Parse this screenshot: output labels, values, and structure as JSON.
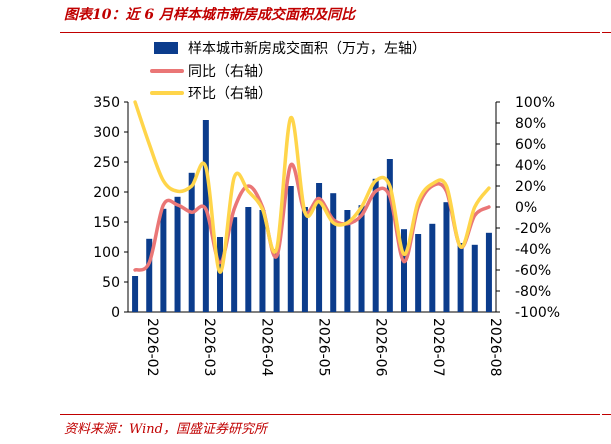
{
  "caption": "图表10：近 6 月样本城市新房成交面积及同比",
  "source": "资料来源：Wind，国盛证券研究所",
  "chart_data": {
    "type": "bar",
    "colors": {
      "bar": "#0b3c8c",
      "yoy": "#ea7676",
      "mom": "#ffd54a"
    },
    "legend": [
      {
        "label": "样本城市新房成交面积（万方，左轴）",
        "kind": "bar"
      },
      {
        "label": "同比（右轴）",
        "kind": "yoy"
      },
      {
        "label": "环比（右轴）",
        "kind": "mom"
      }
    ],
    "left_axis": {
      "ylim": [
        0,
        350
      ],
      "ticks": [
        "0",
        "50",
        "100",
        "150",
        "200",
        "250",
        "300",
        "350"
      ]
    },
    "right_axis": {
      "ylim": [
        -100,
        100
      ],
      "ticks": [
        "-100%",
        "-80%",
        "-60%",
        "-40%",
        "-20%",
        "0%",
        "20%",
        "40%",
        "60%",
        "80%",
        "100%"
      ]
    },
    "x_tick_labels": [
      "2026-02",
      "2026-03",
      "2026-04",
      "2026-05",
      "2026-06",
      "2026-07",
      "2026-08"
    ],
    "series": [
      {
        "name": "样本城市新房成交面积（万方，左轴）",
        "kind": "bar",
        "values": [
          60,
          122,
          172,
          192,
          232,
          320,
          125,
          158,
          175,
          170,
          105,
          210,
          175,
          215,
          198,
          170,
          178,
          222,
          255,
          138,
          130,
          147,
          183,
          115,
          112,
          132
        ]
      },
      {
        "name": "同比（右轴）",
        "kind": "yoy",
        "values": [
          -60,
          -53,
          2,
          2,
          -5,
          -2,
          -53,
          -2,
          20,
          0,
          -47,
          40,
          -5,
          8,
          -12,
          -16,
          -8,
          15,
          10,
          -52,
          0,
          20,
          15,
          -38,
          -8,
          0
        ]
      },
      {
        "name": "环比（右轴）",
        "kind": "mom",
        "values": [
          100,
          60,
          25,
          15,
          20,
          38,
          -62,
          28,
          15,
          -2,
          -40,
          85,
          -5,
          5,
          -15,
          -15,
          0,
          25,
          20,
          -45,
          5,
          22,
          20,
          -38,
          0,
          18
        ]
      }
    ]
  }
}
